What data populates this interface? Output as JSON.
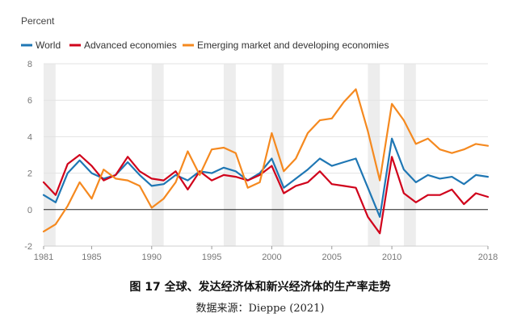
{
  "chart_data": {
    "type": "line",
    "ylabel": "Percent",
    "ylim": [
      -2,
      8
    ],
    "yticks": [
      -2,
      0,
      2,
      4,
      6,
      8
    ],
    "xlim": [
      1981,
      2018
    ],
    "xticks": [
      1981,
      1985,
      1990,
      1995,
      2000,
      2005,
      2010,
      2018
    ],
    "legend_position": "top-left",
    "grid": "horizontal",
    "shaded_periods": [
      [
        1981,
        1982
      ],
      [
        1990,
        1991
      ],
      [
        1996,
        1997
      ],
      [
        2000,
        2001
      ],
      [
        2008,
        2009
      ],
      [
        2011,
        2012
      ]
    ],
    "x": [
      1981,
      1982,
      1983,
      1984,
      1985,
      1986,
      1987,
      1988,
      1989,
      1990,
      1991,
      1992,
      1993,
      1994,
      1995,
      1996,
      1997,
      1998,
      1999,
      2000,
      2001,
      2002,
      2003,
      2004,
      2005,
      2006,
      2007,
      2008,
      2009,
      2010,
      2011,
      2012,
      2013,
      2014,
      2015,
      2016,
      2017,
      2018
    ],
    "series": [
      {
        "name": "World",
        "color": "#1f77b4",
        "values": [
          0.8,
          0.4,
          2.0,
          2.7,
          2.0,
          1.7,
          1.9,
          2.6,
          1.9,
          1.3,
          1.4,
          1.9,
          1.6,
          2.1,
          2.0,
          2.3,
          2.1,
          1.6,
          2.0,
          2.8,
          1.2,
          1.7,
          2.2,
          2.8,
          2.4,
          2.6,
          2.8,
          1.2,
          -0.4,
          3.9,
          2.2,
          1.5,
          1.9,
          1.7,
          1.8,
          1.4,
          1.9,
          1.8
        ]
      },
      {
        "name": "Advanced economies",
        "color": "#d0021b",
        "values": [
          1.5,
          0.8,
          2.5,
          3.0,
          2.4,
          1.6,
          1.9,
          2.9,
          2.1,
          1.7,
          1.6,
          2.1,
          1.1,
          2.1,
          1.6,
          1.9,
          1.8,
          1.6,
          1.9,
          2.4,
          0.9,
          1.3,
          1.5,
          2.1,
          1.4,
          1.3,
          1.2,
          -0.4,
          -1.3,
          2.9,
          0.9,
          0.4,
          0.8,
          0.8,
          1.1,
          0.3,
          0.9,
          0.7
        ]
      },
      {
        "name": "Emerging market and developing economies",
        "color": "#f5891f",
        "values": [
          -1.2,
          -0.8,
          0.2,
          1.5,
          0.6,
          2.2,
          1.7,
          1.6,
          1.3,
          0.1,
          0.6,
          1.5,
          3.2,
          1.9,
          3.3,
          3.4,
          3.1,
          1.2,
          1.5,
          4.2,
          2.1,
          2.8,
          4.2,
          4.9,
          5.0,
          5.9,
          6.6,
          4.3,
          1.6,
          5.8,
          4.9,
          3.6,
          3.9,
          3.3,
          3.1,
          3.3,
          3.6,
          3.5
        ]
      }
    ]
  },
  "caption": "图 17 全球、发达经济体和新兴经济体的生产率走势",
  "source": "数据来源：Dieppe (2021)"
}
